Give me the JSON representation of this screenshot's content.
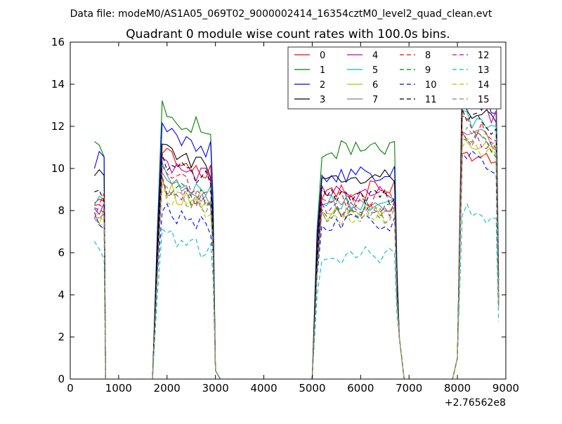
{
  "figure": {
    "suptitle": "Data file: modeM0/AS1A05_069T02_9000002414_16354cztM0_level2_quad_clean.evt"
  },
  "chart_data": {
    "type": "line",
    "title": "Quadrant 0 module wise count rates with 100.0s bins.",
    "xlabel": "",
    "ylabel": "",
    "x_offset_label": "+2.76562e8",
    "xlim": [
      0,
      9000
    ],
    "ylim": [
      0,
      16
    ],
    "xticks": [
      0,
      1000,
      2000,
      3000,
      4000,
      5000,
      6000,
      7000,
      8000,
      9000
    ],
    "yticks": [
      0,
      2,
      4,
      6,
      8,
      10,
      12,
      14,
      16
    ],
    "grid": false,
    "legend_position": "top-right",
    "legend_columns": 4,
    "segments": [
      {
        "x_start": 500,
        "x_end": 700,
        "n": 3
      },
      {
        "x_start": 1900,
        "x_end": 2900,
        "n": 11
      },
      {
        "x_start": 5200,
        "x_end": 6700,
        "n": 16
      },
      {
        "x_start": 8100,
        "x_end": 8800,
        "n": 8
      }
    ],
    "edge_points": [
      {
        "x": 730,
        "y": 0
      },
      {
        "x": 1700,
        "y": 0
      },
      {
        "x": 1800,
        "y": 6.5
      },
      {
        "x": 2950,
        "y": 8
      },
      {
        "x": 3000,
        "y": 0.4
      },
      {
        "x": 3100,
        "y": 0
      },
      {
        "x": 5000,
        "y": 0
      },
      {
        "x": 5100,
        "y": 6.5
      },
      {
        "x": 6750,
        "y": 5
      },
      {
        "x": 6800,
        "y": 2
      },
      {
        "x": 6900,
        "y": 0
      },
      {
        "x": 7900,
        "y": 0
      },
      {
        "x": 8000,
        "y": 1
      },
      {
        "x": 8850,
        "y": 4.5
      }
    ],
    "series": [
      {
        "name": "0",
        "color": "#ff0000",
        "dash": "solid",
        "levels": [
          8.8,
          10.6,
          9.0,
          10.3
        ]
      },
      {
        "name": "1",
        "color": "#008000",
        "dash": "solid",
        "levels": [
          10.9,
          12.6,
          10.9,
          14.3
        ]
      },
      {
        "name": "2",
        "color": "#0000ff",
        "dash": "solid",
        "levels": [
          10.4,
          11.7,
          9.8,
          13.0
        ]
      },
      {
        "name": "3",
        "color": "#000000",
        "dash": "solid",
        "levels": [
          9.6,
          10.8,
          9.7,
          12.4
        ]
      },
      {
        "name": "4",
        "color": "#bf00bf",
        "dash": "solid",
        "levels": [
          8.2,
          10.3,
          8.8,
          12.7
        ]
      },
      {
        "name": "5",
        "color": "#00bfbf",
        "dash": "solid",
        "levels": [
          8.3,
          9.6,
          8.3,
          11.8
        ]
      },
      {
        "name": "6",
        "color": "#bfbf00",
        "dash": "solid",
        "levels": [
          7.8,
          9.0,
          7.9,
          11.0
        ]
      },
      {
        "name": "7",
        "color": "#808080",
        "dash": "solid",
        "levels": [
          8.0,
          9.4,
          8.2,
          11.5
        ]
      },
      {
        "name": "8",
        "color": "#ff0000",
        "dash": "dashed",
        "levels": [
          8.4,
          9.7,
          8.5,
          11.6
        ]
      },
      {
        "name": "9",
        "color": "#008000",
        "dash": "dashed",
        "levels": [
          8.1,
          9.2,
          8.0,
          11.2
        ]
      },
      {
        "name": "10",
        "color": "#0000ff",
        "dash": "dashed",
        "levels": [
          7.5,
          8.0,
          7.4,
          10.3
        ]
      },
      {
        "name": "11",
        "color": "#000000",
        "dash": "dashed",
        "levels": [
          8.6,
          10.2,
          8.7,
          12.0
        ]
      },
      {
        "name": "12",
        "color": "#bf00bf",
        "dash": "dashed",
        "levels": [
          7.9,
          9.1,
          8.1,
          11.0
        ]
      },
      {
        "name": "13",
        "color": "#00bfbf",
        "dash": "dashed",
        "levels": [
          6.1,
          6.8,
          5.9,
          7.5
        ]
      },
      {
        "name": "14",
        "color": "#bfbf00",
        "dash": "dashed",
        "levels": [
          7.6,
          8.8,
          7.7,
          10.8
        ]
      },
      {
        "name": "15",
        "color": "#808080",
        "dash": "dashed",
        "levels": [
          7.7,
          9.0,
          7.8,
          11.2
        ]
      }
    ]
  }
}
